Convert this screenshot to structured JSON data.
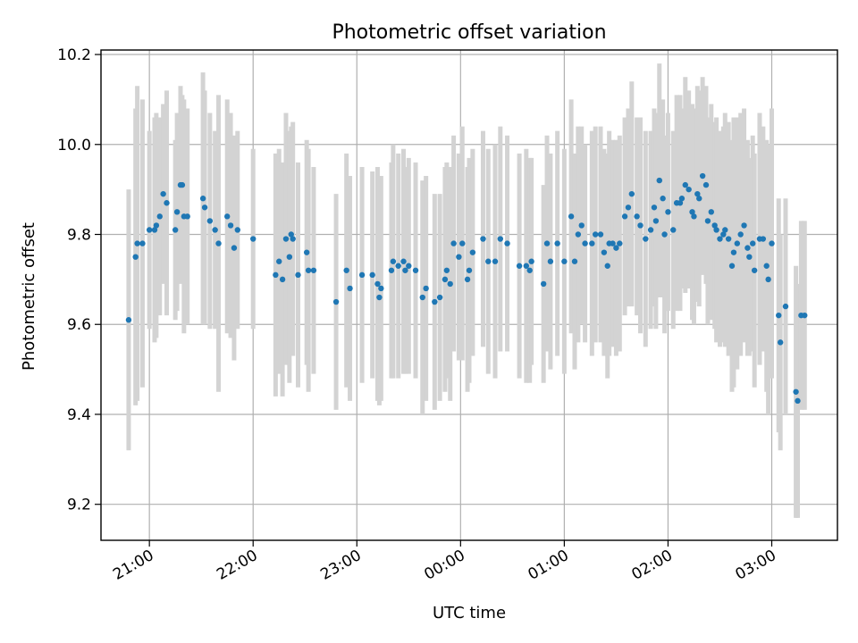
{
  "chart_data": {
    "type": "scatter",
    "title": "Photometric offset variation",
    "xlabel": "UTC time",
    "ylabel": "Photometric offset",
    "x_axis": {
      "kind": "time",
      "range": [
        "20:32",
        "03:38"
      ],
      "ticks": [
        "21:00",
        "22:00",
        "23:00",
        "00:00",
        "01:00",
        "02:00",
        "03:00"
      ]
    },
    "y_axis": {
      "range": [
        9.12,
        10.21
      ],
      "ticks": [
        "9.2",
        "9.4",
        "9.6",
        "9.8",
        "10.0",
        "10.2"
      ]
    },
    "grid": true,
    "colors": {
      "point": "#1f77b4",
      "errorbar": "#d3d3d3"
    },
    "series": [
      {
        "marker": "point with vertical error bar",
        "points": [
          [
            "20:48",
            9.61,
            0.29
          ],
          [
            "20:52",
            9.75,
            0.33
          ],
          [
            "20:53",
            9.78,
            0.35
          ],
          [
            "20:56",
            9.78,
            0.32
          ],
          [
            "21:00",
            9.81,
            0.22
          ],
          [
            "21:03",
            9.81,
            0.25
          ],
          [
            "21:04",
            9.82,
            0.25
          ],
          [
            "21:06",
            9.84,
            0.22
          ],
          [
            "21:08",
            9.89,
            0.2
          ],
          [
            "21:10",
            9.87,
            0.25
          ],
          [
            "21:15",
            9.81,
            0.2
          ],
          [
            "21:16",
            9.85,
            0.22
          ],
          [
            "21:18",
            9.91,
            0.22
          ],
          [
            "21:19",
            9.91,
            0.2
          ],
          [
            "21:20",
            9.84,
            0.26
          ],
          [
            "21:22",
            9.84,
            0.24
          ],
          [
            "21:31",
            9.88,
            0.28
          ],
          [
            "21:32",
            9.86,
            0.26
          ],
          [
            "21:35",
            9.83,
            0.24
          ],
          [
            "21:38",
            9.81,
            0.22
          ],
          [
            "21:40",
            9.78,
            0.33
          ],
          [
            "21:45",
            9.84,
            0.26
          ],
          [
            "21:47",
            9.82,
            0.25
          ],
          [
            "21:49",
            9.77,
            0.25
          ],
          [
            "21:51",
            9.81,
            0.22
          ],
          [
            "22:00",
            9.79,
            0.2
          ],
          [
            "22:13",
            9.71,
            0.27
          ],
          [
            "22:15",
            9.74,
            0.25
          ],
          [
            "22:17",
            9.7,
            0.26
          ],
          [
            "22:19",
            9.79,
            0.28
          ],
          [
            "22:21",
            9.75,
            0.28
          ],
          [
            "22:22",
            9.8,
            0.24
          ],
          [
            "22:23",
            9.79,
            0.26
          ],
          [
            "22:26",
            9.71,
            0.25
          ],
          [
            "22:31",
            9.76,
            0.25
          ],
          [
            "22:32",
            9.72,
            0.27
          ],
          [
            "22:35",
            9.72,
            0.23
          ],
          [
            "22:48",
            9.65,
            0.24
          ],
          [
            "22:54",
            9.72,
            0.26
          ],
          [
            "22:56",
            9.68,
            0.25
          ],
          [
            "23:03",
            9.71,
            0.24
          ],
          [
            "23:09",
            9.71,
            0.23
          ],
          [
            "23:12",
            9.69,
            0.26
          ],
          [
            "23:13",
            9.66,
            0.24
          ],
          [
            "23:14",
            9.68,
            0.25
          ],
          [
            "23:20",
            9.72,
            0.24
          ],
          [
            "23:21",
            9.74,
            0.26
          ],
          [
            "23:24",
            9.73,
            0.25
          ],
          [
            "23:27",
            9.74,
            0.25
          ],
          [
            "23:28",
            9.72,
            0.23
          ],
          [
            "23:30",
            9.73,
            0.24
          ],
          [
            "23:34",
            9.72,
            0.24
          ],
          [
            "23:38",
            9.66,
            0.26
          ],
          [
            "23:40",
            9.68,
            0.25
          ],
          [
            "23:45",
            9.65,
            0.24
          ],
          [
            "23:48",
            9.66,
            0.23
          ],
          [
            "23:51",
            9.7,
            0.25
          ],
          [
            "23:52",
            9.72,
            0.24
          ],
          [
            "23:54",
            9.69,
            0.26
          ],
          [
            "23:56",
            9.78,
            0.24
          ],
          [
            "23:59",
            9.75,
            0.23
          ],
          [
            "00:01",
            9.78,
            0.26
          ],
          [
            "00:04",
            9.7,
            0.25
          ],
          [
            "00:05",
            9.72,
            0.25
          ],
          [
            "00:07",
            9.76,
            0.23
          ],
          [
            "00:13",
            9.79,
            0.24
          ],
          [
            "00:16",
            9.74,
            0.25
          ],
          [
            "00:20",
            9.74,
            0.26
          ],
          [
            "00:23",
            9.79,
            0.25
          ],
          [
            "00:27",
            9.78,
            0.24
          ],
          [
            "00:34",
            9.73,
            0.25
          ],
          [
            "00:38",
            9.73,
            0.26
          ],
          [
            "00:40",
            9.72,
            0.25
          ],
          [
            "00:41",
            9.74,
            0.23
          ],
          [
            "00:48",
            9.69,
            0.22
          ],
          [
            "00:50",
            9.78,
            0.24
          ],
          [
            "00:52",
            9.74,
            0.24
          ],
          [
            "00:56",
            9.78,
            0.25
          ],
          [
            "01:00",
            9.74,
            0.25
          ],
          [
            "01:04",
            9.84,
            0.26
          ],
          [
            "01:06",
            9.74,
            0.24
          ],
          [
            "01:08",
            9.8,
            0.24
          ],
          [
            "01:10",
            9.82,
            0.22
          ],
          [
            "01:12",
            9.78,
            0.22
          ],
          [
            "01:16",
            9.78,
            0.25
          ],
          [
            "01:18",
            9.8,
            0.24
          ],
          [
            "01:21",
            9.8,
            0.24
          ],
          [
            "01:23",
            9.76,
            0.23
          ],
          [
            "01:25",
            9.73,
            0.25
          ],
          [
            "01:26",
            9.78,
            0.25
          ],
          [
            "01:28",
            9.78,
            0.23
          ],
          [
            "01:30",
            9.77,
            0.24
          ],
          [
            "01:32",
            9.78,
            0.24
          ],
          [
            "01:35",
            9.84,
            0.22
          ],
          [
            "01:37",
            9.86,
            0.22
          ],
          [
            "01:39",
            9.89,
            0.25
          ],
          [
            "01:42",
            9.84,
            0.22
          ],
          [
            "01:44",
            9.82,
            0.24
          ],
          [
            "01:47",
            9.79,
            0.24
          ],
          [
            "01:50",
            9.81,
            0.22
          ],
          [
            "01:52",
            9.86,
            0.22
          ],
          [
            "01:53",
            9.83,
            0.24
          ],
          [
            "01:55",
            9.92,
            0.26
          ],
          [
            "01:57",
            9.88,
            0.22
          ],
          [
            "01:58",
            9.8,
            0.22
          ],
          [
            "02:00",
            9.85,
            0.22
          ],
          [
            "02:03",
            9.81,
            0.22
          ],
          [
            "02:05",
            9.87,
            0.24
          ],
          [
            "02:07",
            9.87,
            0.24
          ],
          [
            "02:08",
            9.88,
            0.2
          ],
          [
            "02:10",
            9.91,
            0.24
          ],
          [
            "02:12",
            9.9,
            0.22
          ],
          [
            "02:14",
            9.85,
            0.24
          ],
          [
            "02:15",
            9.84,
            0.24
          ],
          [
            "02:17",
            9.89,
            0.24
          ],
          [
            "02:18",
            9.88,
            0.24
          ],
          [
            "02:20",
            9.93,
            0.22
          ],
          [
            "02:22",
            9.91,
            0.22
          ],
          [
            "02:23",
            9.83,
            0.23
          ],
          [
            "02:25",
            9.85,
            0.24
          ],
          [
            "02:27",
            9.82,
            0.23
          ],
          [
            "02:28",
            9.81,
            0.25
          ],
          [
            "02:30",
            9.79,
            0.24
          ],
          [
            "02:32",
            9.8,
            0.24
          ],
          [
            "02:33",
            9.81,
            0.26
          ],
          [
            "02:35",
            9.79,
            0.26
          ],
          [
            "02:37",
            9.73,
            0.28
          ],
          [
            "02:38",
            9.76,
            0.3
          ],
          [
            "02:40",
            9.78,
            0.28
          ],
          [
            "02:42",
            9.8,
            0.27
          ],
          [
            "02:44",
            9.82,
            0.26
          ],
          [
            "02:46",
            9.77,
            0.24
          ],
          [
            "02:47",
            9.75,
            0.22
          ],
          [
            "02:49",
            9.78,
            0.24
          ],
          [
            "02:50",
            9.72,
            0.26
          ],
          [
            "02:53",
            9.79,
            0.28
          ],
          [
            "02:55",
            9.79,
            0.25
          ],
          [
            "02:57",
            9.73,
            0.28
          ],
          [
            "02:58",
            9.7,
            0.3
          ],
          [
            "03:00",
            9.78,
            0.3
          ],
          [
            "03:04",
            9.62,
            0.26
          ],
          [
            "03:05",
            9.56,
            0.24
          ],
          [
            "03:08",
            9.64,
            0.24
          ],
          [
            "03:14",
            9.45,
            0.28
          ],
          [
            "03:15",
            9.43,
            0.26
          ],
          [
            "03:17",
            9.62,
            0.21
          ],
          [
            "03:19",
            9.62,
            0.21
          ]
        ]
      }
    ]
  }
}
